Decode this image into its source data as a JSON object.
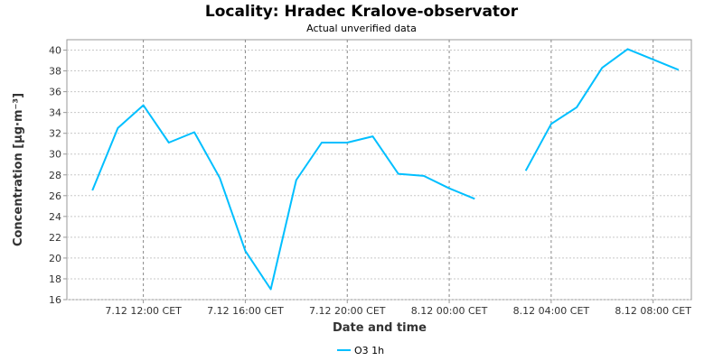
{
  "chart_data": {
    "type": "line",
    "title": "Locality: Hradec Kralove-observator",
    "subtitle": "Actual unverified data",
    "xlabel": "Date and time",
    "ylabel": "Concentration [µg·m⁻³]",
    "ylim": [
      16,
      41
    ],
    "y_ticks": [
      16,
      18,
      20,
      22,
      24,
      26,
      28,
      30,
      32,
      34,
      36,
      38,
      40
    ],
    "xlim": [
      "7.12 09:00",
      "8.12 09:30"
    ],
    "x_ticks": [
      {
        "x": "7.12 12:00",
        "label": "7.12 12:00 CET"
      },
      {
        "x": "7.12 16:00",
        "label": "7.12 16:00 CET"
      },
      {
        "x": "7.12 20:00",
        "label": "7.12 20:00 CET"
      },
      {
        "x": "8.12 00:00",
        "label": "8.12 00:00 CET"
      },
      {
        "x": "8.12 04:00",
        "label": "8.12 04:00 CET"
      },
      {
        "x": "8.12 08:00",
        "label": "8.12 08:00 CET"
      }
    ],
    "grid": true,
    "legend_position": "bottom-center",
    "series": [
      {
        "name": "O3 1h",
        "color": "#00BFFF",
        "points": [
          {
            "x": "7.12 10:00",
            "y": 26.5
          },
          {
            "x": "7.12 11:00",
            "y": 32.5
          },
          {
            "x": "7.12 12:00",
            "y": 34.7
          },
          {
            "x": "7.12 13:00",
            "y": 31.1
          },
          {
            "x": "7.12 14:00",
            "y": 32.1
          },
          {
            "x": "7.12 15:00",
            "y": 27.7
          },
          {
            "x": "7.12 16:00",
            "y": 20.7
          },
          {
            "x": "7.12 17:00",
            "y": 17.0
          },
          {
            "x": "7.12 18:00",
            "y": 27.5
          },
          {
            "x": "7.12 19:00",
            "y": 31.1
          },
          {
            "x": "7.12 20:00",
            "y": 31.1
          },
          {
            "x": "7.12 21:00",
            "y": 31.7
          },
          {
            "x": "7.12 22:00",
            "y": 28.1
          },
          {
            "x": "7.12 23:00",
            "y": 27.9
          },
          {
            "x": "8.12 00:00",
            "y": 26.7
          },
          {
            "x": "8.12 01:00",
            "y": 25.7
          },
          {
            "x": "8.12 02:00",
            "y": null
          },
          {
            "x": "8.12 03:00",
            "y": 28.4
          },
          {
            "x": "8.12 04:00",
            "y": 32.9
          },
          {
            "x": "8.12 05:00",
            "y": 34.5
          },
          {
            "x": "8.12 06:00",
            "y": 38.3
          },
          {
            "x": "8.12 07:00",
            "y": 40.1
          },
          {
            "x": "8.12 08:00",
            "y": 39.1
          },
          {
            "x": "8.12 09:00",
            "y": 38.1
          }
        ]
      }
    ]
  }
}
